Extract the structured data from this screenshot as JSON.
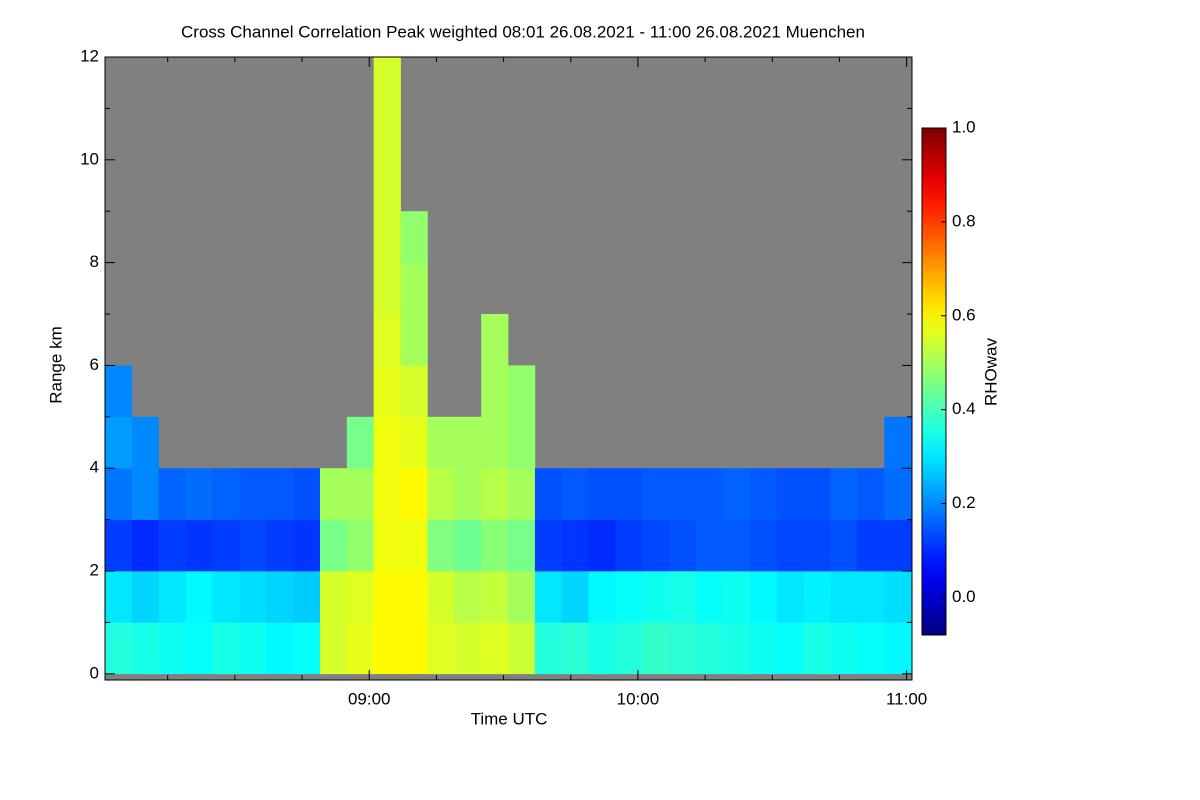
{
  "chart_data": {
    "type": "heatmap",
    "title": "Cross Channel Correlation Peak weighted   08:01 26.08.2021 - 11:00 26.08.2021 Muenchen",
    "xlabel": "Time UTC",
    "ylabel": "Range km",
    "colorbar_label": "RHOwav",
    "colormap": "jet",
    "missing_color": "#808080",
    "xlim": [
      8.0167,
      11.02
    ],
    "ylim": [
      -0.12,
      12
    ],
    "xticks": [
      {
        "value": 9,
        "label": "09:00"
      },
      {
        "value": 10,
        "label": "10:00"
      },
      {
        "value": 11,
        "label": "11:00"
      }
    ],
    "x_minor_ticks": [
      8.25,
      8.5,
      8.75,
      9.25,
      9.5,
      9.75,
      10.25,
      10.5,
      10.75
    ],
    "yticks": [
      0,
      2,
      4,
      6,
      8,
      10,
      12
    ],
    "y_minor_ticks": [
      1,
      3,
      5,
      7,
      9,
      11
    ],
    "zlim": [
      -0.08,
      1.0
    ],
    "zticks": [
      {
        "value": 0,
        "label": "0.0"
      },
      {
        "value": 0.2,
        "label": "0.2"
      },
      {
        "value": 0.4,
        "label": "0.4"
      },
      {
        "value": 0.6,
        "label": "0.6"
      },
      {
        "value": 0.8,
        "label": "0.8"
      },
      {
        "value": 1,
        "label": "1.0"
      }
    ],
    "x_edges": [
      8.0167,
      8.1167,
      8.2167,
      8.3167,
      8.4167,
      8.5167,
      8.6167,
      8.7167,
      8.8167,
      8.9167,
      9.0167,
      9.1167,
      9.2167,
      9.3167,
      9.4167,
      9.5167,
      9.6167,
      9.7167,
      9.8167,
      9.9167,
      10.0167,
      10.1167,
      10.2167,
      10.3167,
      10.4167,
      10.5167,
      10.6167,
      10.7167,
      10.8167,
      10.9167,
      11.02
    ],
    "y_edges": [
      0,
      1,
      2,
      3,
      4,
      5,
      6,
      7,
      8,
      9,
      10,
      11,
      12
    ],
    "z": [
      [
        0.36,
        0.35,
        0.34,
        0.33,
        0.35,
        0.34,
        0.32,
        0.33,
        0.55,
        0.57,
        0.6,
        0.6,
        0.56,
        0.55,
        0.56,
        0.54,
        0.36,
        0.37,
        0.35,
        0.36,
        0.38,
        0.37,
        0.36,
        0.35,
        0.34,
        0.33,
        0.35,
        0.34,
        0.33,
        0.32
      ],
      [
        0.3,
        0.28,
        0.3,
        0.32,
        0.3,
        0.29,
        0.28,
        0.27,
        0.55,
        0.56,
        0.6,
        0.6,
        0.55,
        0.52,
        0.53,
        0.5,
        0.3,
        0.28,
        0.32,
        0.33,
        0.34,
        0.35,
        0.33,
        0.34,
        0.32,
        0.3,
        0.31,
        0.3,
        0.3,
        0.29
      ],
      [
        0.12,
        0.1,
        0.12,
        0.11,
        0.12,
        0.13,
        0.12,
        0.11,
        0.45,
        0.48,
        0.58,
        0.58,
        0.46,
        0.44,
        0.47,
        0.45,
        0.12,
        0.11,
        0.1,
        0.12,
        0.13,
        0.14,
        0.15,
        0.15,
        0.14,
        0.13,
        0.13,
        0.14,
        0.12,
        0.12
      ],
      [
        0.18,
        0.2,
        0.16,
        0.17,
        0.16,
        0.15,
        0.15,
        0.14,
        0.5,
        0.5,
        0.58,
        0.6,
        0.52,
        0.5,
        0.52,
        0.5,
        0.14,
        0.15,
        0.14,
        0.14,
        0.15,
        0.15,
        0.15,
        0.16,
        0.15,
        0.14,
        0.14,
        0.16,
        0.15,
        0.17
      ],
      [
        0.22,
        0.2,
        null,
        null,
        null,
        null,
        null,
        null,
        null,
        0.45,
        0.58,
        0.57,
        0.5,
        0.5,
        0.5,
        0.48,
        null,
        null,
        null,
        null,
        null,
        null,
        null,
        null,
        null,
        null,
        null,
        null,
        null,
        0.18
      ],
      [
        0.2,
        null,
        null,
        null,
        null,
        null,
        null,
        null,
        null,
        null,
        0.57,
        0.55,
        null,
        null,
        0.5,
        0.48,
        null,
        null,
        null,
        null,
        null,
        null,
        null,
        null,
        null,
        null,
        null,
        null,
        null,
        null
      ],
      [
        null,
        null,
        null,
        null,
        null,
        null,
        null,
        null,
        null,
        null,
        0.56,
        0.5,
        null,
        null,
        0.5,
        null,
        null,
        null,
        null,
        null,
        null,
        null,
        null,
        null,
        null,
        null,
        null,
        null,
        null,
        null
      ],
      [
        null,
        null,
        null,
        null,
        null,
        null,
        null,
        null,
        null,
        null,
        0.55,
        0.5,
        null,
        null,
        null,
        null,
        null,
        null,
        null,
        null,
        null,
        null,
        null,
        null,
        null,
        null,
        null,
        null,
        null,
        null
      ],
      [
        null,
        null,
        null,
        null,
        null,
        null,
        null,
        null,
        null,
        null,
        0.55,
        0.48,
        null,
        null,
        null,
        null,
        null,
        null,
        null,
        null,
        null,
        null,
        null,
        null,
        null,
        null,
        null,
        null,
        null,
        null
      ],
      [
        null,
        null,
        null,
        null,
        null,
        null,
        null,
        null,
        null,
        null,
        0.55,
        null,
        null,
        null,
        null,
        null,
        null,
        null,
        null,
        null,
        null,
        null,
        null,
        null,
        null,
        null,
        null,
        null,
        null,
        null
      ],
      [
        null,
        null,
        null,
        null,
        null,
        null,
        null,
        null,
        null,
        null,
        0.55,
        null,
        null,
        null,
        null,
        null,
        null,
        null,
        null,
        null,
        null,
        null,
        null,
        null,
        null,
        null,
        null,
        null,
        null,
        null
      ],
      [
        null,
        null,
        null,
        null,
        null,
        null,
        null,
        null,
        null,
        null,
        0.55,
        null,
        null,
        null,
        null,
        null,
        null,
        null,
        null,
        null,
        null,
        null,
        null,
        null,
        null,
        null,
        null,
        null,
        null,
        null
      ]
    ]
  }
}
